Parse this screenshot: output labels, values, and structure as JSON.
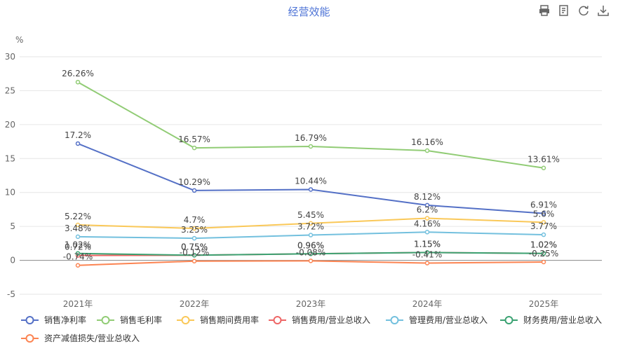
{
  "chart_data": {
    "type": "line",
    "title": "经营效能",
    "ylabel": "%",
    "ylim": [
      -5,
      30
    ],
    "yticks": [
      -5,
      0,
      5,
      10,
      15,
      20,
      25,
      30
    ],
    "categories": [
      "2021年",
      "2022年",
      "2023年",
      "2024年",
      "2025年"
    ],
    "grid": true,
    "legend_position": "bottom",
    "series": [
      {
        "name": "销售净利率",
        "color": "#5470c6",
        "values": [
          17.2,
          10.29,
          10.44,
          8.12,
          6.91
        ],
        "labels": [
          "17.2%",
          "10.29%",
          "10.44%",
          "8.12%",
          "6.91%"
        ]
      },
      {
        "name": "销售毛利率",
        "color": "#91cc75",
        "values": [
          26.26,
          16.57,
          16.79,
          16.16,
          13.61
        ],
        "labels": [
          "26.26%",
          "16.57%",
          "16.79%",
          "16.16%",
          "13.61%"
        ]
      },
      {
        "name": "销售期间费用率",
        "color": "#fac858",
        "values": [
          5.22,
          4.7,
          5.45,
          6.2,
          5.6
        ],
        "labels": [
          "5.22%",
          "4.7%",
          "5.45%",
          "6.2%",
          "5.6%"
        ]
      },
      {
        "name": "销售费用/营业总收入",
        "color": "#ee6666",
        "values": [
          0.72,
          0.75,
          0.96,
          1.15,
          1.02
        ],
        "labels": [
          "0.72%",
          "0.75%",
          "0.96%",
          "1.15%",
          "1.02%"
        ]
      },
      {
        "name": "管理费用/营业总收入",
        "color": "#73c0de",
        "values": [
          3.48,
          3.25,
          3.72,
          4.16,
          3.77
        ],
        "labels": [
          "3.48%",
          "3.25%",
          "3.72%",
          "4.16%",
          "3.77%"
        ]
      },
      {
        "name": "财务费用/营业总收入",
        "color": "#3ba272",
        "values": [
          1.02,
          0.75,
          0.96,
          1.15,
          1.02
        ],
        "labels": [
          "1.02%",
          "0.75%",
          "0.96%",
          "1.15%",
          "1.02%"
        ]
      },
      {
        "name": "资产减值损失/营业总收入",
        "color": "#fc8452",
        "values": [
          -0.74,
          -0.12,
          -0.08,
          -0.41,
          -0.25
        ],
        "labels": [
          "-0.74%",
          "-0.12%",
          "-0.08%",
          "-0.41%",
          "-0.25%"
        ]
      }
    ]
  },
  "toolbar": [
    {
      "name": "print-icon"
    },
    {
      "name": "data-view-icon"
    },
    {
      "name": "refresh-icon"
    },
    {
      "name": "download-icon"
    }
  ]
}
